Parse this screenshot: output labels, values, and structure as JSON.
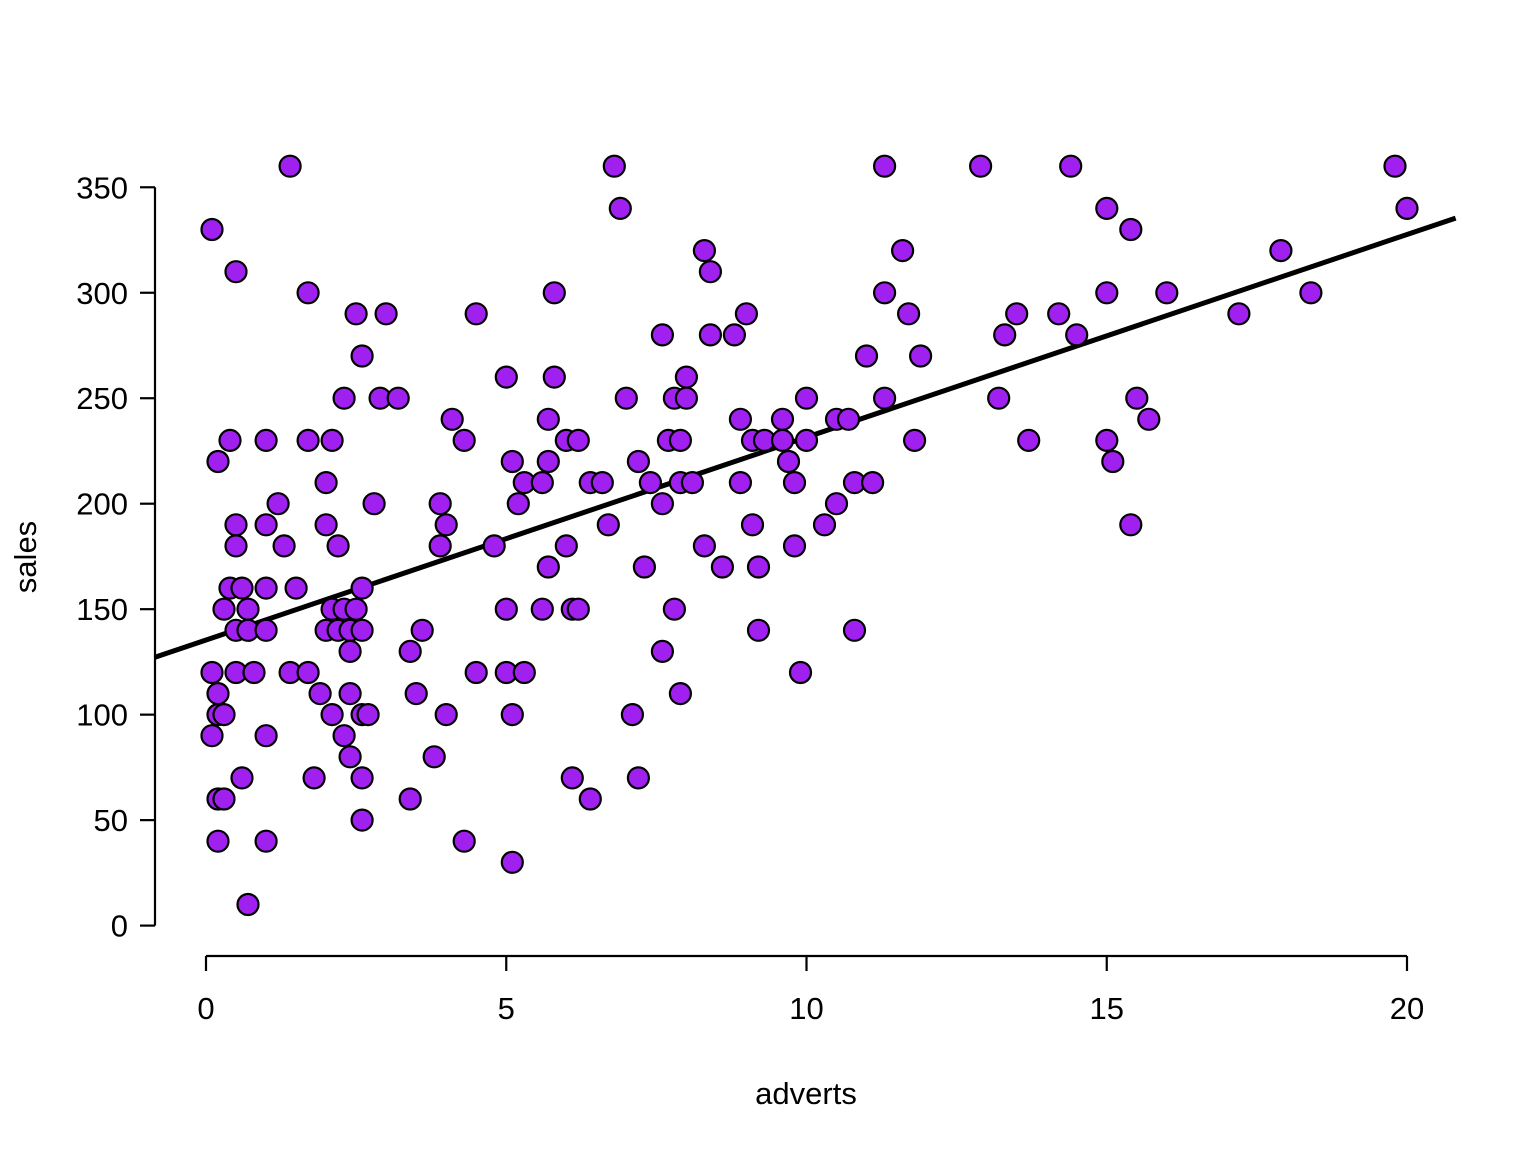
{
  "chart_data": {
    "type": "scatter",
    "title": "",
    "xlabel": "adverts",
    "ylabel": "sales",
    "x_ticks": [
      0,
      5,
      10,
      15,
      20
    ],
    "y_ticks": [
      0,
      50,
      100,
      150,
      200,
      250,
      300,
      350
    ],
    "xlim": [
      -0.85,
      20.85
    ],
    "ylim": [
      -4,
      374
    ],
    "grid": false,
    "legend": "none",
    "point_color": "#A020F0",
    "point_border_color": "#000000",
    "line_color": "#000000",
    "axis_color": "#000000",
    "regression_line": {
      "x1": -0.85,
      "y1": 127.2,
      "x2": 20.81,
      "y2": 335.4,
      "note": "sales = 135.4 + 9.61 * adverts"
    },
    "points": [
      [
        1.4,
        360
      ],
      [
        6.8,
        360
      ],
      [
        11.3,
        360
      ],
      [
        12.9,
        360
      ],
      [
        14.4,
        360
      ],
      [
        19.8,
        360
      ],
      [
        6.9,
        340
      ],
      [
        15.0,
        340
      ],
      [
        20.0,
        340
      ],
      [
        0.1,
        330
      ],
      [
        15.4,
        330
      ],
      [
        8.3,
        320
      ],
      [
        11.6,
        320
      ],
      [
        17.9,
        320
      ],
      [
        0.5,
        310
      ],
      [
        8.4,
        310
      ],
      [
        1.7,
        300
      ],
      [
        5.8,
        300
      ],
      [
        11.3,
        300
      ],
      [
        15.0,
        300
      ],
      [
        16.0,
        300
      ],
      [
        18.4,
        300
      ],
      [
        2.5,
        290
      ],
      [
        3.0,
        290
      ],
      [
        4.5,
        290
      ],
      [
        9.0,
        290
      ],
      [
        11.7,
        290
      ],
      [
        13.5,
        290
      ],
      [
        14.2,
        290
      ],
      [
        17.2,
        290
      ],
      [
        7.6,
        280
      ],
      [
        8.4,
        280
      ],
      [
        8.8,
        280
      ],
      [
        13.3,
        280
      ],
      [
        14.5,
        280
      ],
      [
        2.6,
        270
      ],
      [
        11.0,
        270
      ],
      [
        11.9,
        270
      ],
      [
        5.0,
        260
      ],
      [
        5.8,
        260
      ],
      [
        8.0,
        260
      ],
      [
        2.3,
        250
      ],
      [
        2.9,
        250
      ],
      [
        3.2,
        250
      ],
      [
        7.0,
        250
      ],
      [
        7.8,
        250
      ],
      [
        8.0,
        250
      ],
      [
        10.0,
        250
      ],
      [
        11.3,
        250
      ],
      [
        13.2,
        250
      ],
      [
        15.5,
        250
      ],
      [
        4.1,
        240
      ],
      [
        5.7,
        240
      ],
      [
        8.9,
        240
      ],
      [
        9.6,
        240
      ],
      [
        10.5,
        240
      ],
      [
        10.7,
        240
      ],
      [
        15.7,
        240
      ],
      [
        0.4,
        230
      ],
      [
        1.0,
        230
      ],
      [
        1.7,
        230
      ],
      [
        2.1,
        230
      ],
      [
        4.3,
        230
      ],
      [
        6.0,
        230
      ],
      [
        6.2,
        230
      ],
      [
        7.7,
        230
      ],
      [
        7.9,
        230
      ],
      [
        9.1,
        230
      ],
      [
        9.3,
        230
      ],
      [
        9.6,
        230
      ],
      [
        10.0,
        230
      ],
      [
        11.8,
        230
      ],
      [
        13.7,
        230
      ],
      [
        15.0,
        230
      ],
      [
        0.2,
        220
      ],
      [
        5.1,
        220
      ],
      [
        5.7,
        220
      ],
      [
        7.2,
        220
      ],
      [
        9.7,
        220
      ],
      [
        15.1,
        220
      ],
      [
        2.0,
        210
      ],
      [
        5.3,
        210
      ],
      [
        5.6,
        210
      ],
      [
        6.4,
        210
      ],
      [
        6.6,
        210
      ],
      [
        7.4,
        210
      ],
      [
        7.9,
        210
      ],
      [
        8.1,
        210
      ],
      [
        8.9,
        210
      ],
      [
        9.8,
        210
      ],
      [
        10.8,
        210
      ],
      [
        11.1,
        210
      ],
      [
        1.2,
        200
      ],
      [
        2.8,
        200
      ],
      [
        3.9,
        200
      ],
      [
        5.2,
        200
      ],
      [
        7.6,
        200
      ],
      [
        10.5,
        200
      ],
      [
        0.5,
        190
      ],
      [
        1.0,
        190
      ],
      [
        2.0,
        190
      ],
      [
        4.0,
        190
      ],
      [
        6.7,
        190
      ],
      [
        9.1,
        190
      ],
      [
        10.3,
        190
      ],
      [
        15.4,
        190
      ],
      [
        0.5,
        180
      ],
      [
        1.3,
        180
      ],
      [
        2.2,
        180
      ],
      [
        3.9,
        180
      ],
      [
        4.8,
        180
      ],
      [
        6.0,
        180
      ],
      [
        8.3,
        180
      ],
      [
        9.8,
        180
      ],
      [
        5.7,
        170
      ],
      [
        7.3,
        170
      ],
      [
        8.6,
        170
      ],
      [
        9.2,
        170
      ],
      [
        0.4,
        160
      ],
      [
        0.6,
        160
      ],
      [
        1.0,
        160
      ],
      [
        1.5,
        160
      ],
      [
        2.6,
        160
      ],
      [
        0.3,
        150
      ],
      [
        0.7,
        150
      ],
      [
        2.1,
        150
      ],
      [
        2.3,
        150
      ],
      [
        2.5,
        150
      ],
      [
        5.0,
        150
      ],
      [
        5.6,
        150
      ],
      [
        6.1,
        150
      ],
      [
        6.2,
        150
      ],
      [
        7.8,
        150
      ],
      [
        0.5,
        140
      ],
      [
        0.7,
        140
      ],
      [
        1.0,
        140
      ],
      [
        2.0,
        140
      ],
      [
        2.2,
        140
      ],
      [
        2.4,
        140
      ],
      [
        2.6,
        140
      ],
      [
        3.6,
        140
      ],
      [
        9.2,
        140
      ],
      [
        10.8,
        140
      ],
      [
        2.4,
        130
      ],
      [
        3.4,
        130
      ],
      [
        7.6,
        130
      ],
      [
        0.1,
        120
      ],
      [
        0.5,
        120
      ],
      [
        0.8,
        120
      ],
      [
        1.4,
        120
      ],
      [
        1.7,
        120
      ],
      [
        4.5,
        120
      ],
      [
        5.0,
        120
      ],
      [
        5.3,
        120
      ],
      [
        9.9,
        120
      ],
      [
        0.2,
        110
      ],
      [
        1.9,
        110
      ],
      [
        2.4,
        110
      ],
      [
        3.5,
        110
      ],
      [
        7.9,
        110
      ],
      [
        0.2,
        100
      ],
      [
        0.3,
        100
      ],
      [
        2.1,
        100
      ],
      [
        2.6,
        100
      ],
      [
        2.7,
        100
      ],
      [
        4.0,
        100
      ],
      [
        5.1,
        100
      ],
      [
        7.1,
        100
      ],
      [
        0.1,
        90
      ],
      [
        1.0,
        90
      ],
      [
        2.3,
        90
      ],
      [
        2.4,
        80
      ],
      [
        3.8,
        80
      ],
      [
        0.6,
        70
      ],
      [
        1.8,
        70
      ],
      [
        2.6,
        70
      ],
      [
        6.1,
        70
      ],
      [
        7.2,
        70
      ],
      [
        0.2,
        60
      ],
      [
        0.3,
        60
      ],
      [
        3.4,
        60
      ],
      [
        6.4,
        60
      ],
      [
        2.6,
        50
      ],
      [
        0.2,
        40
      ],
      [
        1.0,
        40
      ],
      [
        4.3,
        40
      ],
      [
        5.1,
        30
      ],
      [
        0.7,
        10
      ]
    ]
  }
}
